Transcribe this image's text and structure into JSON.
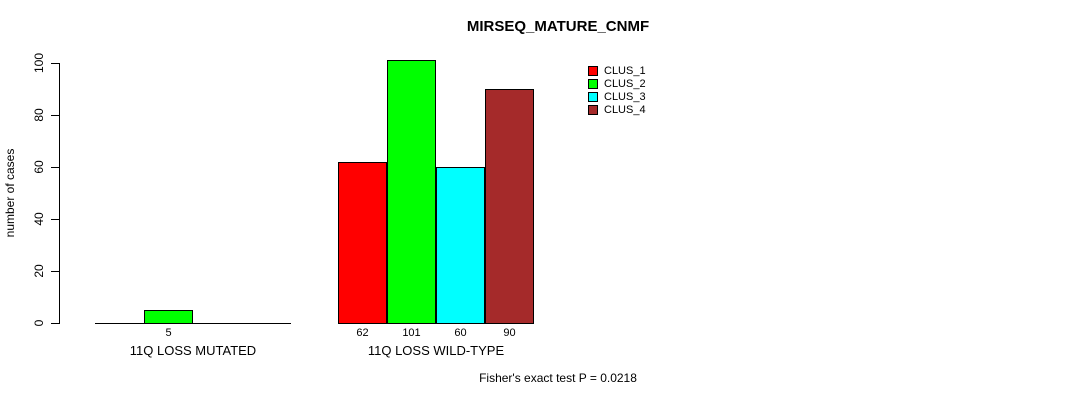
{
  "chart_data": {
    "type": "bar",
    "title": "MIRSEQ_MATURE_CNMF",
    "ylabel": "number of cases",
    "xlabel": "",
    "ylim": [
      0,
      100
    ],
    "yticks": [
      0,
      20,
      40,
      60,
      80,
      100
    ],
    "grid": false,
    "legend_position": "top-right",
    "categories": [
      "11Q LOSS MUTATED",
      "11Q LOSS WILD-TYPE"
    ],
    "series": [
      {
        "name": "CLUS_1",
        "color": "#FF0000",
        "values": [
          0,
          62
        ]
      },
      {
        "name": "CLUS_2",
        "color": "#00FF00",
        "values": [
          5,
          101
        ]
      },
      {
        "name": "CLUS_3",
        "color": "#00FFFF",
        "values": [
          0,
          60
        ]
      },
      {
        "name": "CLUS_4",
        "color": "#A52A2A",
        "values": [
          0,
          90
        ]
      }
    ],
    "bar_value_labels_shown_when_nonzero": true,
    "footnote": "Fisher's exact test P = 0.0218"
  }
}
